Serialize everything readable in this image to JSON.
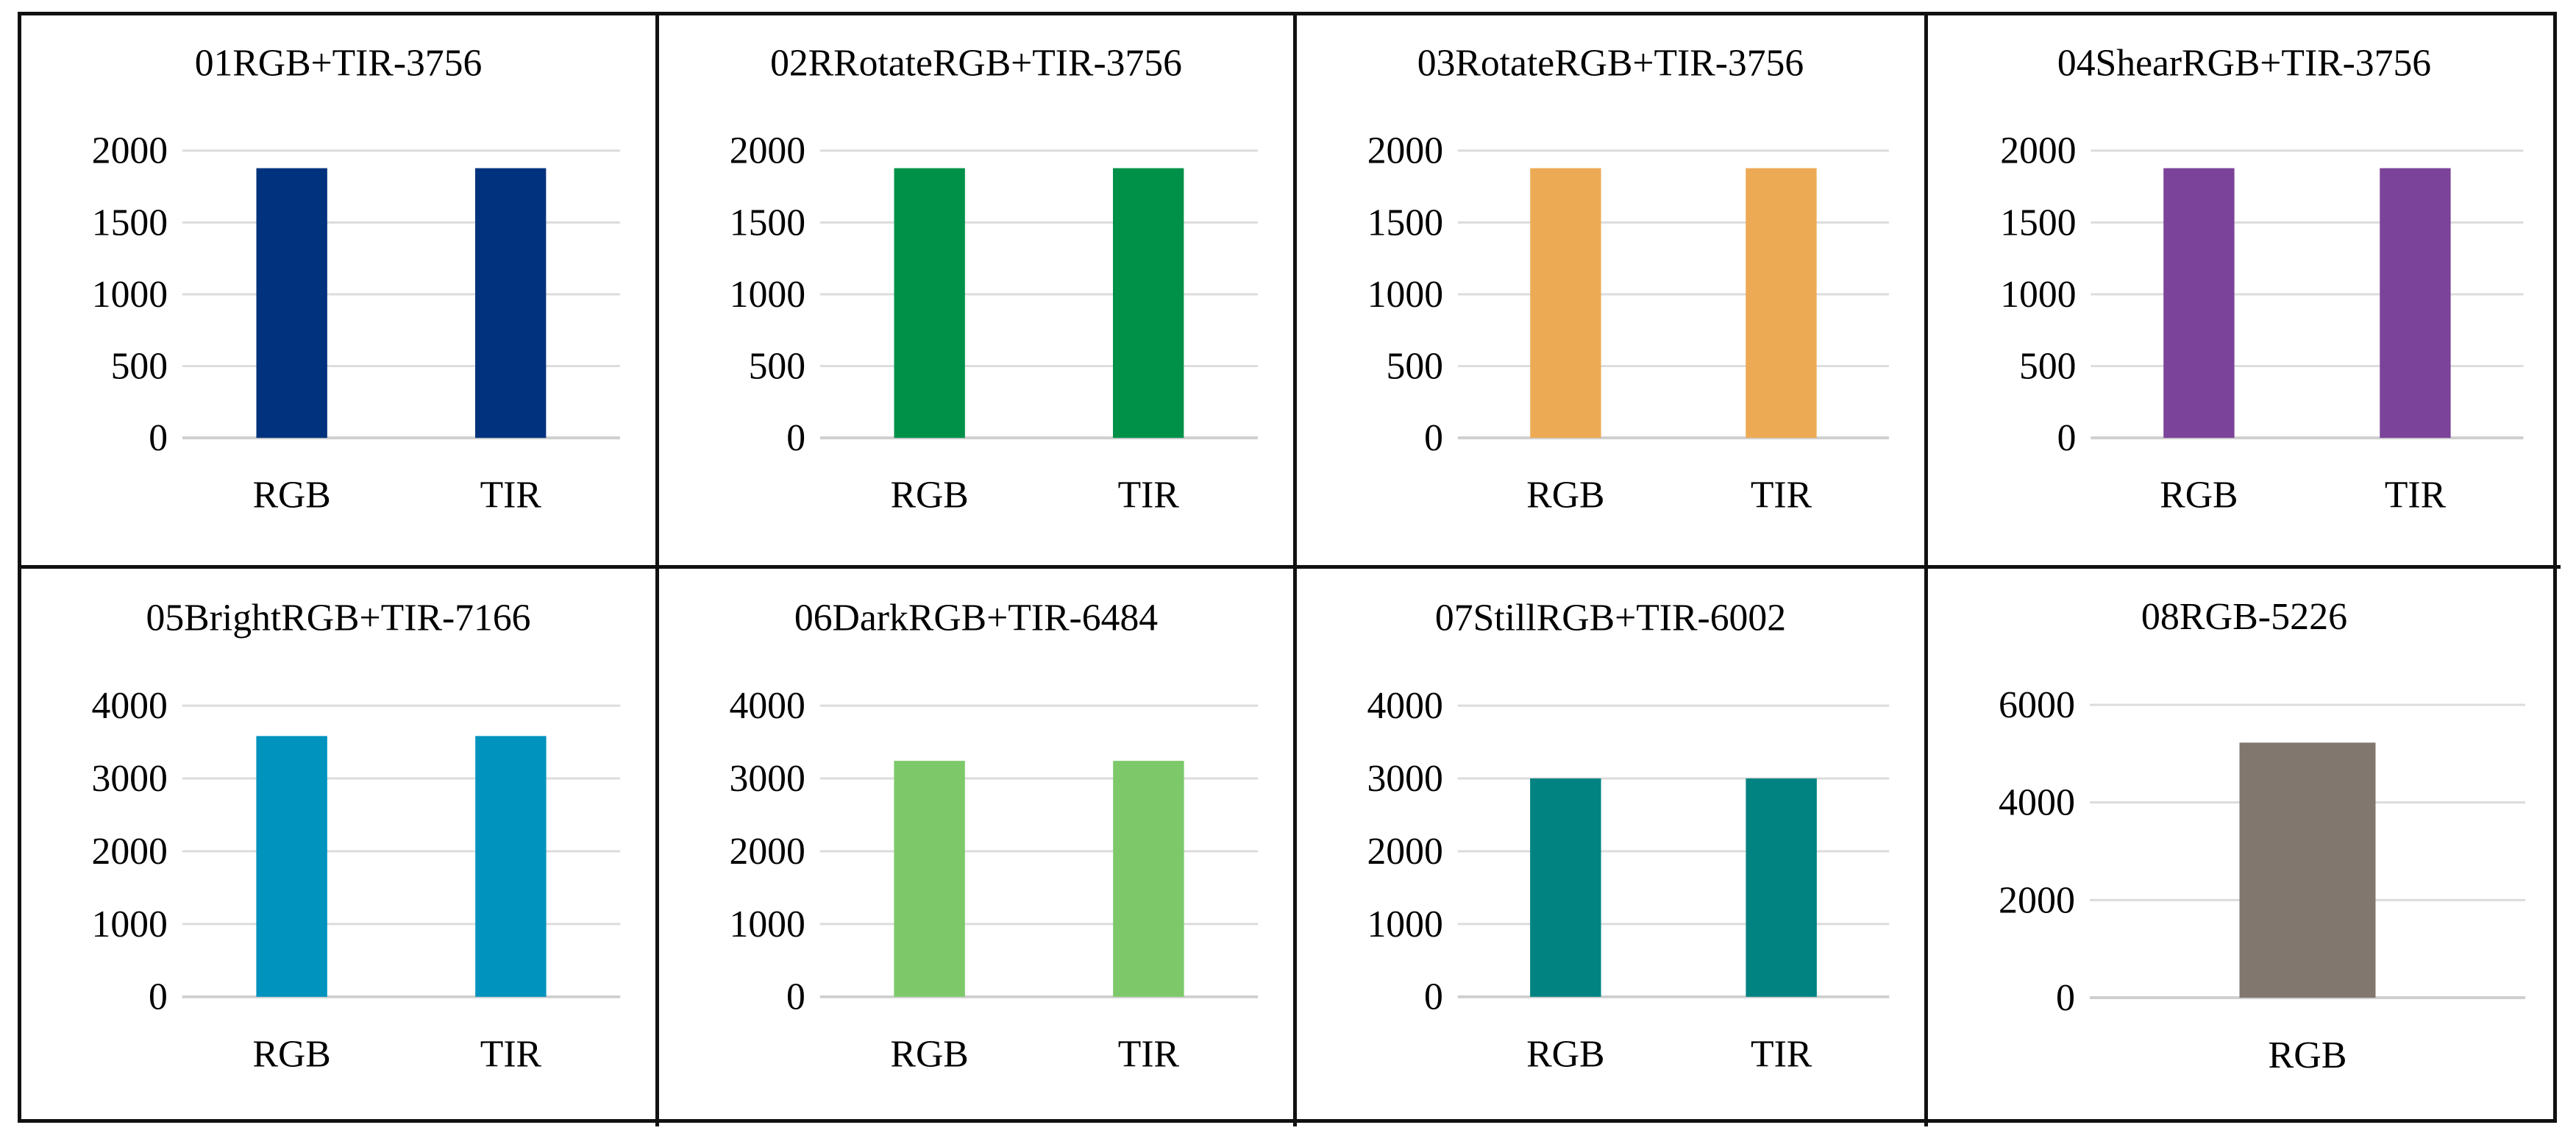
{
  "chart_data": [
    {
      "type": "bar",
      "title": "01RGB+TIR-3756",
      "categories": [
        "RGB",
        "TIR"
      ],
      "values": [
        1878,
        1878
      ],
      "ylim": [
        0,
        2000
      ],
      "yticks": [
        0,
        500,
        1000,
        1500,
        2000
      ],
      "grid": true,
      "color": "#00327D"
    },
    {
      "type": "bar",
      "title": "02RRotateRGB+TIR-3756",
      "categories": [
        "RGB",
        "TIR"
      ],
      "values": [
        1878,
        1878
      ],
      "ylim": [
        0,
        2000
      ],
      "yticks": [
        0,
        500,
        1000,
        1500,
        2000
      ],
      "grid": true,
      "color": "#009149"
    },
    {
      "type": "bar",
      "title": "03RotateRGB+TIR-3756",
      "categories": [
        "RGB",
        "TIR"
      ],
      "values": [
        1878,
        1878
      ],
      "ylim": [
        0,
        2000
      ],
      "yticks": [
        0,
        500,
        1000,
        1500,
        2000
      ],
      "grid": true,
      "color": "#EDAA55"
    },
    {
      "type": "bar",
      "title": "04ShearRGB+TIR-3756",
      "categories": [
        "RGB",
        "TIR"
      ],
      "values": [
        1878,
        1878
      ],
      "ylim": [
        0,
        2000
      ],
      "yticks": [
        0,
        500,
        1000,
        1500,
        2000
      ],
      "grid": true,
      "color": "#7B4399"
    },
    {
      "type": "bar",
      "title": "05BrightRGB+TIR-7166",
      "categories": [
        "RGB",
        "TIR"
      ],
      "values": [
        3583,
        3583
      ],
      "ylim": [
        0,
        4000
      ],
      "yticks": [
        0,
        1000,
        2000,
        3000,
        4000
      ],
      "grid": true,
      "color": "#0093BE"
    },
    {
      "type": "bar",
      "title": "06DarkRGB+TIR-6484",
      "categories": [
        "RGB",
        "TIR"
      ],
      "values": [
        3242,
        3242
      ],
      "ylim": [
        0,
        4000
      ],
      "yticks": [
        0,
        1000,
        2000,
        3000,
        4000
      ],
      "grid": true,
      "color": "#7DC96A"
    },
    {
      "type": "bar",
      "title": "07StillRGB+TIR-6002",
      "categories": [
        "RGB",
        "TIR"
      ],
      "values": [
        3001,
        3001
      ],
      "ylim": [
        0,
        4000
      ],
      "yticks": [
        0,
        1000,
        2000,
        3000,
        4000
      ],
      "grid": true,
      "color": "#008381"
    },
    {
      "type": "bar",
      "title": "08RGB-5226",
      "categories": [
        "RGB"
      ],
      "values": [
        5226
      ],
      "ylim": [
        0,
        6000
      ],
      "yticks": [
        0,
        2000,
        4000,
        6000
      ],
      "grid": true,
      "color": "#81776F"
    }
  ]
}
